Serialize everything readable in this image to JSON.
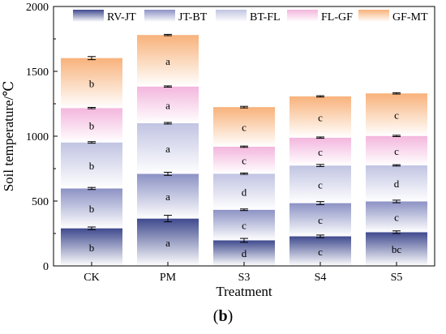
{
  "chart_data": {
    "type": "bar",
    "stacked": true,
    "xlabel": "Treatment",
    "ylabel": "Soil temperature/℃",
    "ylim": [
      0,
      2000
    ],
    "yticks": [
      0,
      500,
      1000,
      1500,
      2000
    ],
    "categories": [
      "CK",
      "PM",
      "S3",
      "S4",
      "S5"
    ],
    "legend_position": "top",
    "series": [
      {
        "name": "RV-JT",
        "color": "#3f4a8e",
        "values": [
          290,
          365,
          197,
          228,
          260
        ],
        "errors": [
          10,
          25,
          15,
          10,
          10
        ],
        "letters": [
          "b",
          "a",
          "d",
          "c",
          "bc"
        ]
      },
      {
        "name": "JT-BT",
        "color": "#8c92c4",
        "values": [
          307,
          345,
          236,
          256,
          237
        ],
        "errors": [
          8,
          12,
          6,
          12,
          10
        ],
        "letters": [
          "b",
          "a",
          "c",
          "c",
          "c"
        ]
      },
      {
        "name": "BT-FL",
        "color": "#c1c4e2",
        "values": [
          355,
          390,
          278,
          290,
          278
        ],
        "errors": [
          6,
          6,
          5,
          8,
          5
        ],
        "letters": [
          "b",
          "a",
          "d",
          "c",
          "d"
        ]
      },
      {
        "name": "FL-GF",
        "color": "#f3b6dd",
        "values": [
          265,
          283,
          208,
          215,
          227
        ],
        "errors": [
          5,
          5,
          5,
          5,
          5
        ],
        "letters": [
          "b",
          "a",
          "c",
          "c",
          "c"
        ]
      },
      {
        "name": "GF-MT",
        "color": "#f8b27b",
        "values": [
          385,
          397,
          305,
          318,
          328
        ],
        "errors": [
          12,
          5,
          6,
          5,
          5
        ],
        "letters": [
          "b",
          "a",
          "c",
          "c",
          "c"
        ]
      }
    ]
  },
  "panel_label": "b"
}
